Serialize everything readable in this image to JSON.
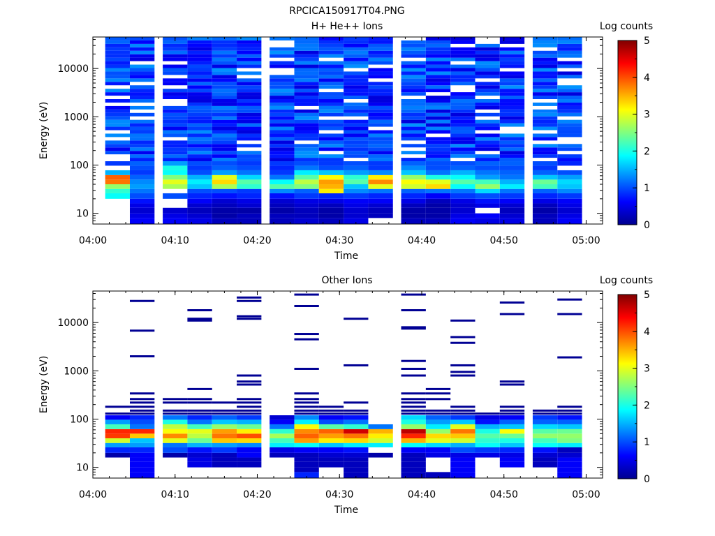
{
  "figure": {
    "title": "RPCICA150917T04.PNG"
  },
  "colorbar": {
    "label": "Log counts",
    "range": [
      0,
      5
    ],
    "ticks": [
      "0",
      "1",
      "2",
      "3",
      "4",
      "5"
    ]
  },
  "chart_data": [
    {
      "type": "heatmap",
      "title": "H+ He++ Ions",
      "xlabel": "Time",
      "ylabel": "Energy (eV)",
      "x_ticks": [
        "04:00",
        "04:10",
        "04:20",
        "04:30",
        "04:40",
        "04:50",
        "05:00"
      ],
      "xlim": [
        "04:00",
        "05:02"
      ],
      "y_ticks": [
        "10",
        "100",
        "1000",
        "10000"
      ],
      "ylim": [
        6,
        45000
      ],
      "y_scale": "log",
      "time_columns": [
        "04:03",
        "04:06",
        "04:10",
        "04:13",
        "04:16",
        "04:19",
        "04:23",
        "04:26",
        "04:29",
        "04:32",
        "04:35",
        "04:39",
        "04:42",
        "04:45",
        "04:48",
        "04:51",
        "04:55",
        "04:58"
      ],
      "energy_bands": [
        {
          "range": [
            6,
            8
          ],
          "values": [
            null,
            0.6,
            0.6,
            0.5,
            0.3,
            0.3,
            0.3,
            0.4,
            0.3,
            0.5,
            null,
            0.3,
            0.3,
            0.6,
            0.5,
            0.5,
            0.3,
            0.6
          ]
        },
        {
          "range": [
            8,
            10
          ],
          "values": [
            null,
            0.5,
            0.5,
            0.4,
            0.2,
            0.3,
            0.3,
            0.3,
            0.2,
            0.4,
            0.3,
            0.2,
            0.2,
            0.5,
            0.6,
            0.4,
            0.3,
            0.5
          ]
        },
        {
          "range": [
            10,
            13
          ],
          "values": [
            null,
            0.4,
            0.4,
            0.3,
            0.2,
            0.2,
            0.2,
            0.3,
            0.2,
            0.4,
            0.3,
            0.2,
            0.2,
            0.4,
            null,
            0.3,
            0.2,
            0.4
          ]
        },
        {
          "range": [
            13,
            16
          ],
          "values": [
            null,
            0.5,
            null,
            0.4,
            0.3,
            0.4,
            0.3,
            0.4,
            0.3,
            0.5,
            0.4,
            0.3,
            0.2,
            0.4,
            0.5,
            0.4,
            0.3,
            0.5
          ]
        },
        {
          "range": [
            16,
            20
          ],
          "values": [
            null,
            0.7,
            null,
            0.6,
            0.4,
            0.5,
            0.4,
            0.5,
            0.5,
            0.6,
            0.6,
            0.5,
            0.3,
            0.5,
            0.7,
            0.6,
            0.5,
            0.6
          ]
        },
        {
          "range": [
            20,
            26
          ],
          "values": [
            1.9,
            1.0,
            1.0,
            0.8,
            0.7,
            0.8,
            0.7,
            0.9,
            0.8,
            0.9,
            0.8,
            0.8,
            0.6,
            0.9,
            1.0,
            0.9,
            0.8,
            0.9
          ]
        },
        {
          "range": [
            26,
            32
          ],
          "values": [
            2.1,
            1.2,
            null,
            1.0,
            1.0,
            0.9,
            1.3,
            1.1,
            3.2,
            1.3,
            1.2,
            1.1,
            1.2,
            1.2,
            1.7,
            1.2,
            1.1,
            1.3
          ]
        },
        {
          "range": [
            32,
            40
          ],
          "values": [
            2.6,
            1.4,
            2.7,
            1.6,
            2.7,
            2.1,
            2.3,
            2.5,
            3.5,
            1.6,
            3.0,
            2.9,
            3.3,
            1.9,
            2.6,
            1.8,
            2.2,
            1.6
          ]
        },
        {
          "range": [
            40,
            50
          ],
          "values": [
            3.8,
            1.3,
            3.0,
            1.8,
            3.3,
            2.3,
            1.9,
            2.8,
            3.6,
            2.3,
            3.7,
            3.1,
            3.0,
            2.3,
            2.2,
            1.5,
            2.4,
            1.7
          ]
        },
        {
          "range": [
            50,
            62
          ],
          "values": [
            3.9,
            1.1,
            2.5,
            1.5,
            3.0,
            1.7,
            1.2,
            2.3,
            3.1,
            2.1,
            3.2,
            2.6,
            2.0,
            1.9,
            1.4,
            1.2,
            1.6,
            1.4
          ]
        },
        {
          "range": [
            62,
            78
          ],
          "values": [
            1.5,
            0.9,
            1.9,
            1.0,
            1.4,
            1.2,
            0.9,
            1.8,
            1.6,
            1.4,
            1.3,
            1.6,
            1.2,
            1.5,
            1.2,
            1.1,
            1.1,
            1.0
          ]
        },
        {
          "range": [
            78,
            97
          ],
          "values": [
            null,
            1.0,
            2.0,
            0.9,
            1.1,
            1.0,
            0.8,
            1.2,
            1.0,
            1.1,
            0.9,
            1.3,
            1.0,
            1.1,
            1.0,
            1.0,
            0.9,
            null
          ]
        },
        {
          "range": [
            97,
            120
          ],
          "values": [
            0.9,
            1.1,
            1.4,
            1.0,
            1.0,
            0.9,
            0.9,
            1.0,
            0.9,
            1.0,
            0.9,
            1.1,
            1.0,
            1.0,
            1.1,
            1.1,
            1.0,
            0.8
          ]
        }
      ],
      "upper_band": {
        "range": [
          120,
          45000
        ],
        "typical_value": 0.9,
        "note": "mostly dark/medium blue with scattered white (zero-count) lines"
      }
    },
    {
      "type": "heatmap",
      "title": "Other Ions",
      "xlabel": "Time",
      "ylabel": "Energy (eV)",
      "x_ticks": [
        "04:00",
        "04:10",
        "04:20",
        "04:30",
        "04:40",
        "04:50",
        "05:00"
      ],
      "xlim": [
        "04:00",
        "05:02"
      ],
      "y_ticks": [
        "10",
        "100",
        "1000",
        "10000"
      ],
      "ylim": [
        6,
        45000
      ],
      "y_scale": "log",
      "time_columns": [
        "04:03",
        "04:06",
        "04:10",
        "04:13",
        "04:16",
        "04:19",
        "04:23",
        "04:26",
        "04:29",
        "04:32",
        "04:35",
        "04:39",
        "04:42",
        "04:45",
        "04:48",
        "04:51",
        "04:55",
        "04:58"
      ],
      "energy_bands": [
        {
          "range": [
            6,
            8
          ],
          "values": [
            null,
            0.6,
            null,
            null,
            null,
            null,
            null,
            0.8,
            null,
            0.3,
            null,
            0.3,
            0.3,
            0.6,
            null,
            null,
            null,
            0.6
          ]
        },
        {
          "range": [
            8,
            10
          ],
          "values": [
            null,
            0.6,
            null,
            null,
            null,
            null,
            null,
            0.3,
            null,
            0.3,
            null,
            0.3,
            null,
            0.6,
            null,
            null,
            null,
            0.6
          ]
        },
        {
          "range": [
            10,
            13
          ],
          "values": [
            null,
            0.6,
            null,
            0.5,
            0.3,
            0.3,
            null,
            0.3,
            0.3,
            0.3,
            null,
            0.3,
            null,
            0.6,
            null,
            0.6,
            0.3,
            0.6
          ]
        },
        {
          "range": [
            13,
            16
          ],
          "values": [
            null,
            0.6,
            null,
            0.5,
            0.3,
            0.3,
            null,
            0.3,
            0.3,
            0.3,
            null,
            0.3,
            null,
            0.6,
            null,
            0.6,
            0.3,
            0.6
          ]
        },
        {
          "range": [
            16,
            20
          ],
          "values": [
            0.2,
            0.6,
            0.2,
            0.4,
            0.3,
            0.6,
            0.3,
            0.3,
            0.4,
            0.4,
            0.2,
            0.3,
            0.5,
            0.5,
            0.5,
            0.5,
            0.4,
            0.4
          ]
        },
        {
          "range": [
            20,
            26
          ],
          "values": [
            0.8,
            0.8,
            1.0,
            0.7,
            0.9,
            0.6,
            0.5,
            0.6,
            0.6,
            0.7,
            null,
            0.6,
            0.6,
            1.0,
            0.9,
            0.8,
            0.7,
            0.3
          ]
        },
        {
          "range": [
            26,
            32
          ],
          "values": [
            1.4,
            1.4,
            1.2,
            1.5,
            1.4,
            1.3,
            1.8,
            1.9,
            1.6,
            1.8,
            1.8,
            1.9,
            1.7,
            1.5,
            1.9,
            1.6,
            1.9,
            1.8
          ]
        },
        {
          "range": [
            32,
            40
          ],
          "values": [
            2.9,
            1.6,
            3.0,
            2.4,
            3.4,
            3.3,
            2.2,
            3.6,
            3.2,
            3.3,
            2.9,
            3.5,
            3.0,
            2.9,
            2.1,
            2.0,
            2.2,
            2.5
          ]
        },
        {
          "range": [
            40,
            50
          ],
          "values": [
            4.1,
            3.4,
            3.7,
            2.8,
            3.8,
            4.0,
            2.7,
            3.9,
            3.6,
            3.8,
            3.2,
            4.2,
            3.3,
            3.4,
            2.3,
            2.4,
            2.6,
            2.6
          ]
        },
        {
          "range": [
            50,
            62
          ],
          "values": [
            4.2,
            4.2,
            3.1,
            3.0,
            3.6,
            3.2,
            2.1,
            3.7,
            3.9,
            4.6,
            3.5,
            4.7,
            2.6,
            3.8,
            2.0,
            3.1,
            2.3,
            2.4
          ]
        },
        {
          "range": [
            62,
            78
          ],
          "values": [
            2.2,
            1.2,
            2.8,
            2.2,
            2.6,
            2.4,
            1.2,
            3.1,
            2.3,
            2.1,
            1.2,
            2.6,
            1.8,
            3.0,
            1.5,
            1.6,
            1.7,
            1.6
          ]
        },
        {
          "range": [
            78,
            97
          ],
          "values": [
            1.4,
            1.0,
            2.0,
            1.2,
            1.6,
            1.5,
            0.6,
            1.8,
            1.0,
            1.2,
            null,
            2.0,
            1.4,
            1.6,
            0.7,
            1.1,
            1.1,
            1.1
          ]
        },
        {
          "range": [
            97,
            120
          ],
          "values": [
            0.6,
            0.8,
            1.2,
            0.8,
            1.1,
            0.9,
            0.4,
            1.3,
            0.6,
            0.7,
            null,
            1.7,
            1.1,
            0.9,
            0.5,
            0.6,
            0.9,
            0.7
          ]
        }
      ],
      "sparse_lines": [
        {
          "energy": 130,
          "columns": [
            0,
            1,
            2,
            3,
            4,
            5,
            7,
            8,
            9,
            11,
            12,
            13,
            14,
            15,
            16,
            17
          ]
        },
        {
          "energy": 150,
          "columns": [
            1,
            2,
            3,
            4,
            5,
            7,
            8,
            9,
            11,
            12,
            13,
            15,
            16,
            17
          ]
        },
        {
          "energy": 180,
          "columns": [
            0,
            1,
            5,
            7,
            8,
            11,
            13,
            15,
            17
          ]
        },
        {
          "energy": 220,
          "columns": [
            1,
            2,
            3,
            4,
            5,
            7,
            9,
            11
          ]
        },
        {
          "energy": 260,
          "columns": [
            1,
            2,
            3,
            5,
            7,
            11,
            12
          ]
        },
        {
          "energy": 340,
          "columns": [
            1,
            7,
            11,
            12
          ]
        },
        {
          "energy": 420,
          "columns": [
            3,
            12
          ]
        },
        {
          "energy": 520,
          "columns": [
            5,
            15
          ]
        },
        {
          "energy": 600,
          "columns": [
            5,
            15
          ]
        },
        {
          "energy": 800,
          "columns": [
            5,
            11,
            13
          ]
        },
        {
          "energy": 950,
          "columns": [
            13
          ]
        },
        {
          "energy": 1100,
          "columns": [
            7,
            11
          ]
        },
        {
          "energy": 1300,
          "columns": [
            9,
            13
          ]
        },
        {
          "energy": 1600,
          "columns": [
            11
          ]
        },
        {
          "energy": 1900,
          "columns": [
            17
          ]
        },
        {
          "energy": 2000,
          "columns": [
            1
          ]
        },
        {
          "energy": 3800,
          "columns": [
            13
          ]
        },
        {
          "energy": 4500,
          "columns": [
            7
          ]
        },
        {
          "energy": 5000,
          "columns": [
            13
          ]
        },
        {
          "energy": 5800,
          "columns": [
            7
          ]
        },
        {
          "energy": 6800,
          "columns": [
            1
          ]
        },
        {
          "energy": 7500,
          "columns": [
            11
          ]
        },
        {
          "energy": 8000,
          "columns": [
            11
          ]
        },
        {
          "energy": 11000,
          "columns": [
            3,
            13
          ]
        },
        {
          "energy": 12000,
          "columns": [
            3,
            5,
            9
          ]
        },
        {
          "energy": 13500,
          "columns": [
            5
          ]
        },
        {
          "energy": 15000,
          "columns": [
            15,
            17
          ]
        },
        {
          "energy": 18000,
          "columns": [
            3,
            11
          ]
        },
        {
          "energy": 22000,
          "columns": [
            7
          ]
        },
        {
          "energy": 26000,
          "columns": [
            15
          ]
        },
        {
          "energy": 28000,
          "columns": [
            1,
            5
          ]
        },
        {
          "energy": 30000,
          "columns": [
            17
          ]
        },
        {
          "energy": 33000,
          "columns": [
            5
          ]
        },
        {
          "energy": 38000,
          "columns": [
            7,
            11
          ]
        }
      ]
    }
  ]
}
